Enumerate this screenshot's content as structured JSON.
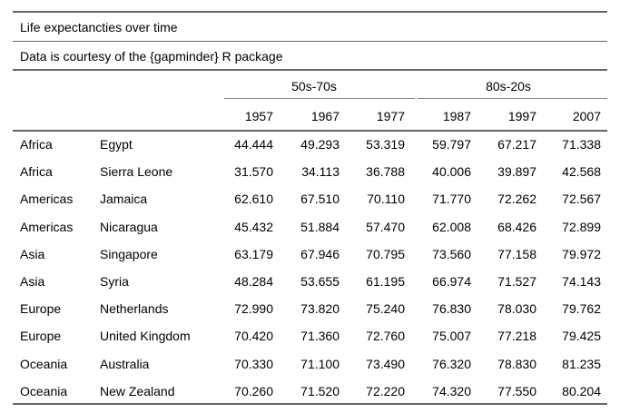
{
  "title": "Life expectancties over time",
  "subtitle": "Data is courtesy of the {gapminder} R package",
  "spanners": [
    "50s-70s",
    "80s-20s"
  ],
  "columns": [
    "1957",
    "1967",
    "1977",
    "1987",
    "1997",
    "2007"
  ],
  "rows": [
    {
      "continent": "Africa",
      "country": "Egypt",
      "values": [
        "44.444",
        "49.293",
        "53.319",
        "59.797",
        "67.217",
        "71.338"
      ]
    },
    {
      "continent": "Africa",
      "country": "Sierra Leone",
      "values": [
        "31.570",
        "34.113",
        "36.788",
        "40.006",
        "39.897",
        "42.568"
      ]
    },
    {
      "continent": "Americas",
      "country": "Jamaica",
      "values": [
        "62.610",
        "67.510",
        "70.110",
        "71.770",
        "72.262",
        "72.567"
      ]
    },
    {
      "continent": "Americas",
      "country": "Nicaragua",
      "values": [
        "45.432",
        "51.884",
        "57.470",
        "62.008",
        "68.426",
        "72.899"
      ]
    },
    {
      "continent": "Asia",
      "country": "Singapore",
      "values": [
        "63.179",
        "67.946",
        "70.795",
        "73.560",
        "77.158",
        "79.972"
      ]
    },
    {
      "continent": "Asia",
      "country": "Syria",
      "values": [
        "48.284",
        "53.655",
        "61.195",
        "66.974",
        "71.527",
        "74.143"
      ]
    },
    {
      "continent": "Europe",
      "country": "Netherlands",
      "values": [
        "72.990",
        "73.820",
        "75.240",
        "76.830",
        "78.030",
        "79.762"
      ]
    },
    {
      "continent": "Europe",
      "country": "United Kingdom",
      "values": [
        "70.420",
        "71.360",
        "72.760",
        "75.007",
        "77.218",
        "79.425"
      ]
    },
    {
      "continent": "Oceania",
      "country": "Australia",
      "values": [
        "70.330",
        "71.100",
        "73.490",
        "76.320",
        "78.830",
        "81.235"
      ]
    },
    {
      "continent": "Oceania",
      "country": "New Zealand",
      "values": [
        "70.260",
        "71.520",
        "72.220",
        "74.320",
        "77.550",
        "80.204"
      ]
    }
  ]
}
